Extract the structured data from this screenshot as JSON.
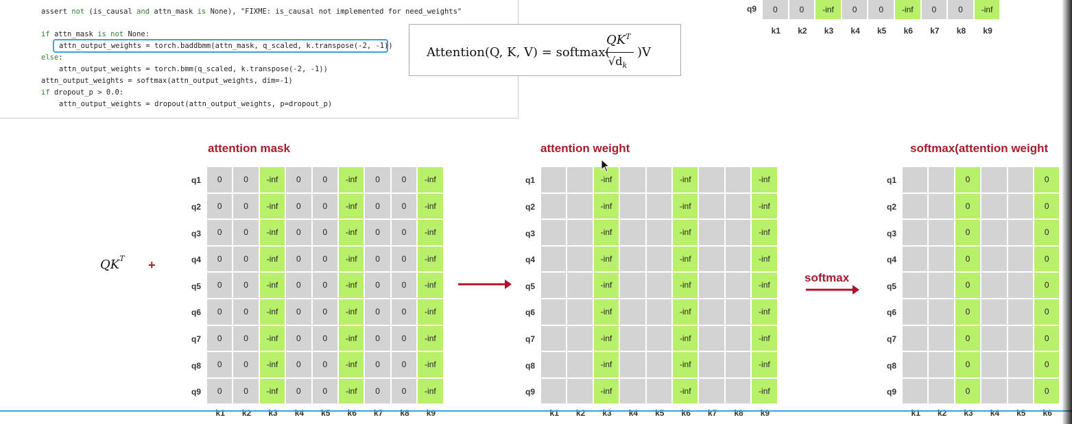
{
  "code": {
    "lines": [
      {
        "top": 9,
        "left": 60,
        "segments": [
          {
            "t": "assert ",
            "k": false
          },
          {
            "t": "not",
            "k": true
          },
          {
            "t": " (is_causal ",
            "k": false
          },
          {
            "t": "and",
            "k": true
          },
          {
            "t": " attn_mask ",
            "k": false
          },
          {
            "t": "is",
            "k": true
          },
          {
            "t": " None), \"FIXME: is_causal not implemented for need_weights\"",
            "k": false
          }
        ]
      },
      {
        "top": 42,
        "left": 60,
        "segments": [
          {
            "t": "if",
            "k": true
          },
          {
            "t": " attn_mask ",
            "k": false
          },
          {
            "t": "is not",
            "k": true
          },
          {
            "t": " None:",
            "k": false
          }
        ]
      },
      {
        "top": 59,
        "left": 86,
        "segments": [
          {
            "t": "attn_output_weights = torch.baddbmm(attn_mask, q_scaled, k.transpose(-2, -1))",
            "k": false
          }
        ]
      },
      {
        "top": 76,
        "left": 60,
        "segments": [
          {
            "t": "else",
            "k": true
          },
          {
            "t": ":",
            "k": false
          }
        ]
      },
      {
        "top": 93,
        "left": 86,
        "segments": [
          {
            "t": "attn_output_weights = torch.bmm(q_scaled, k.transpose(-2, -1))",
            "k": false
          }
        ]
      },
      {
        "top": 110,
        "left": 60,
        "segments": [
          {
            "t": "attn_output_weights = softmax(attn_output_weights, dim=-1)",
            "k": false
          }
        ]
      },
      {
        "top": 127,
        "left": 60,
        "segments": [
          {
            "t": "if",
            "k": true
          },
          {
            "t": " dropout_p > 0.0:",
            "k": false
          }
        ]
      },
      {
        "top": 144,
        "left": 86,
        "segments": [
          {
            "t": "attn_output_weights = dropout(attn_output_weights, p=dropout_p)",
            "k": false
          }
        ]
      }
    ]
  },
  "formula": {
    "lhs": "Attention(Q, K, V) = softmax(",
    "numerator": "QK",
    "numerator_sup": "T",
    "denominator": "√d",
    "denominator_sub": "k",
    "rhs": ")V"
  },
  "qkt_label": "QK",
  "qkt_sup": "T",
  "plus_sign": "+",
  "softmax_arrow_label": "softmax",
  "top_row": {
    "row_label": "q9",
    "values": [
      "0",
      "0",
      "-inf",
      "0",
      "0",
      "-inf",
      "0",
      "0",
      "-inf"
    ],
    "col_labels": [
      "k1",
      "k2",
      "k3",
      "k4",
      "k5",
      "k6",
      "k7",
      "k8",
      "k9"
    ]
  },
  "grids": [
    {
      "title": "attention mask",
      "row_labels": [
        "q1",
        "q2",
        "q3",
        "q4",
        "q5",
        "q6",
        "q7",
        "q8",
        "q9"
      ],
      "col_labels": [
        "k1",
        "k2",
        "k3",
        "k4",
        "k5",
        "k6",
        "k7",
        "k8",
        "k9"
      ],
      "values": [
        "0",
        "0",
        "-inf",
        "0",
        "0",
        "-inf",
        "0",
        "0",
        "-inf"
      ]
    },
    {
      "title": "attention weight",
      "row_labels": [
        "q1",
        "q2",
        "q3",
        "q4",
        "q5",
        "q6",
        "q7",
        "q8",
        "q9"
      ],
      "col_labels": [
        "k1",
        "k2",
        "k3",
        "k4",
        "k5",
        "k6",
        "k7",
        "k8",
        "k9"
      ],
      "values": [
        "",
        "",
        "-inf",
        "",
        "",
        "-inf",
        "",
        "",
        "-inf"
      ]
    },
    {
      "title": "softmax(attention weight",
      "row_labels": [
        "q1",
        "q2",
        "q3",
        "q4",
        "q5",
        "q6",
        "q7",
        "q8",
        "q9"
      ],
      "col_labels": [
        "k1",
        "k2",
        "k3",
        "k4",
        "k5",
        "k6"
      ],
      "values": [
        "",
        "",
        "0",
        "",
        "",
        "0"
      ]
    }
  ],
  "highlight_columns": [
    3,
    6,
    9
  ],
  "colors": {
    "cell_gray": "#d3d3d3",
    "cell_green": "#b9f06a",
    "title_red": "#a51d2d",
    "highlight_blue": "#39a2d8"
  }
}
